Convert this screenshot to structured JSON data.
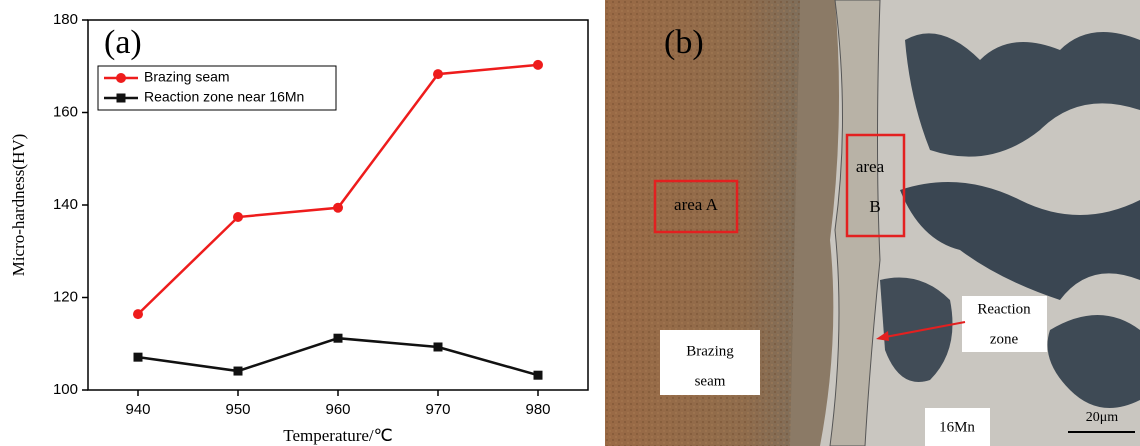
{
  "chart_data": {
    "type": "line",
    "annotation": "(a)",
    "x_label": "Temperature/℃",
    "y_label": "Micro-hardness(HV)",
    "x": [
      940,
      950,
      960,
      970,
      980
    ],
    "xlim": [
      935,
      985
    ],
    "xticks": [
      940,
      950,
      960,
      970,
      980
    ],
    "ylim": [
      100,
      180
    ],
    "yticks": [
      100,
      120,
      140,
      160,
      180
    ],
    "legend": "upper left",
    "series": [
      {
        "name": "Brazing seam",
        "color": "#ee1c1c",
        "marker": "circle",
        "values": [
          116.4,
          137.4,
          139.4,
          168.3,
          170.3
        ]
      },
      {
        "name": "Reaction zone near 16Mn",
        "color": "#111111",
        "marker": "square",
        "values": [
          107.1,
          104.1,
          111.2,
          109.3,
          103.2
        ]
      }
    ]
  },
  "micrograph": {
    "label": "(b)",
    "area_a": "area A",
    "area_b": [
      "area",
      "B"
    ],
    "reaction_zone": [
      "Reaction",
      "zone"
    ],
    "brazing_seam": [
      "Brazing",
      "seam"
    ],
    "base_metal": "16Mn",
    "scale_bar": "20μm"
  }
}
